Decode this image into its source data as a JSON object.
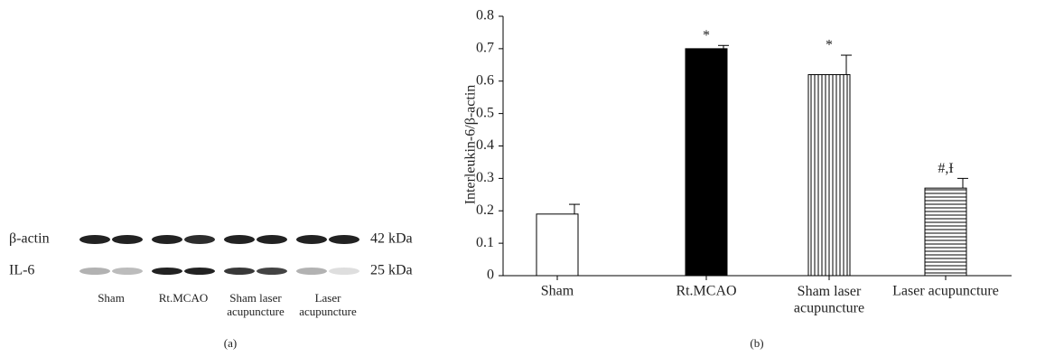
{
  "panel_a": {
    "rows": [
      {
        "label": "β-actin",
        "size": "42 kDa"
      },
      {
        "label": "IL-6",
        "size": "25 kDa"
      }
    ],
    "groups": [
      "Sham",
      "Rt.MCAO",
      "Sham laser\nacupuncture",
      "Laser\nacupuncture"
    ],
    "caption": "(a)"
  },
  "chart_data": {
    "type": "bar",
    "ylabel": "Interleukin-6/β-actin",
    "categories": [
      "Sham",
      "Rt.MCAO",
      "Sham laser\nacupuncture",
      "Laser acupuncture"
    ],
    "values": [
      0.19,
      0.7,
      0.62,
      0.27
    ],
    "errors": [
      0.03,
      0.01,
      0.06,
      0.03
    ],
    "annotations": [
      null,
      "*",
      "*",
      "#,Ɨ"
    ],
    "fills": [
      "white",
      "solid",
      "vertical-lines",
      "horizontal-lines"
    ],
    "color": "#000000",
    "ylim": [
      0,
      0.8
    ],
    "yticks": [
      0,
      0.1,
      0.2,
      0.3,
      0.4,
      0.5,
      0.6,
      0.7,
      0.8
    ],
    "caption": "(b)"
  }
}
